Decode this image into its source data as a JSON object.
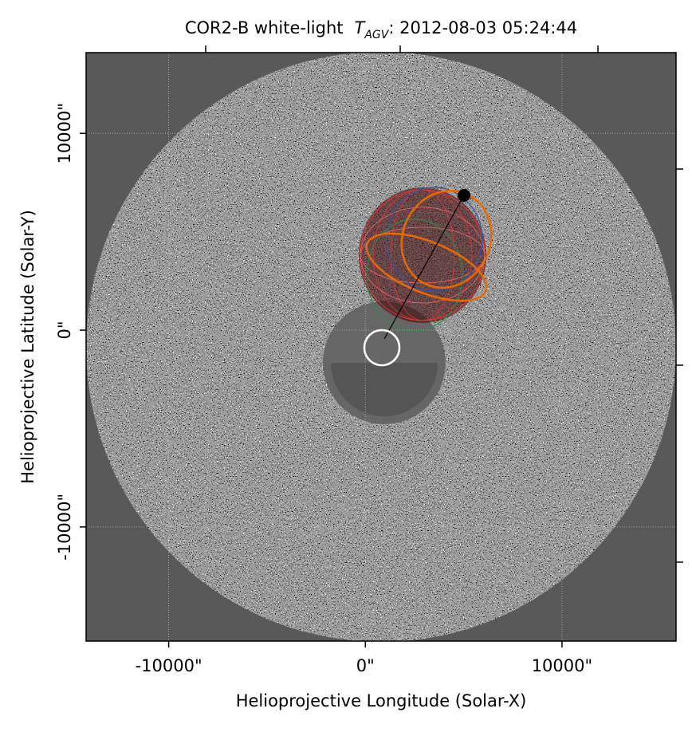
{
  "chart_data": {
    "type": "image",
    "title": {
      "instrument": "COR2-B white-light",
      "symbol": "T",
      "subscript": "AGV",
      "time": ": 2012-08-03 05:24:44"
    },
    "x_label": "Helioprojective Longitude (Solar-X)",
    "y_label": "Helioprojective Latitude (Solar-Y)",
    "xlim": [
      -14200,
      15800
    ],
    "ylim": [
      -15800,
      14100
    ],
    "xticks": [
      {
        "value": -10000,
        "label": "-10000\""
      },
      {
        "value": 0,
        "label": "0\""
      },
      {
        "value": 10000,
        "label": "10000\""
      }
    ],
    "yticks": [
      {
        "value": -10000,
        "label": "-10000\""
      },
      {
        "value": 0,
        "label": "0\""
      },
      {
        "value": 10000,
        "label": "10000\""
      }
    ],
    "grid": true
  }
}
